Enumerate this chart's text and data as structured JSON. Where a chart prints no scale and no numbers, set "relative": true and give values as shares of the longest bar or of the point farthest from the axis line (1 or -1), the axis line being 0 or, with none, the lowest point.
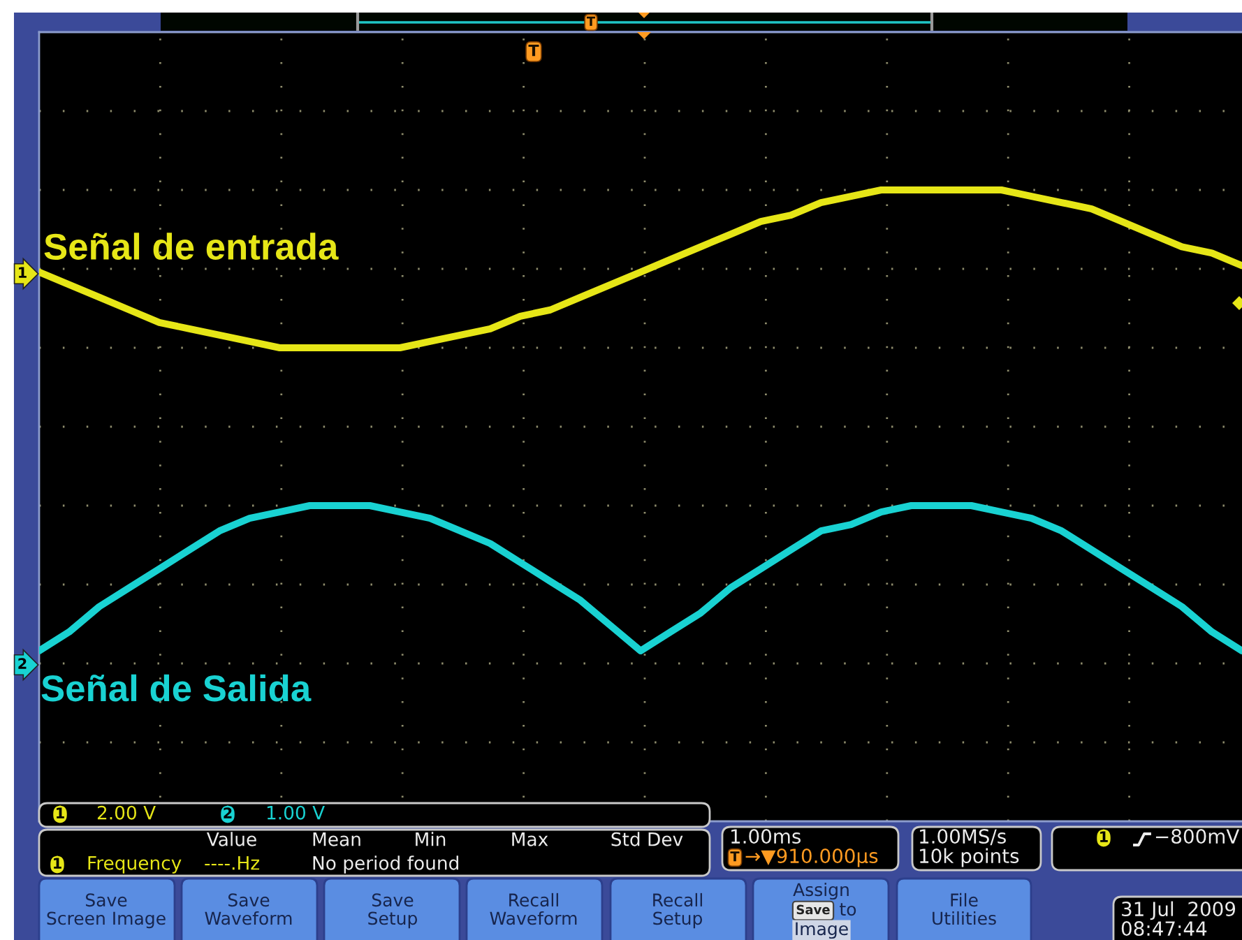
{
  "chart_data": {
    "type": "line",
    "relative": true,
    "grid": true,
    "categories": [
      null,
      null,
      null,
      null,
      null,
      null,
      null,
      null,
      null,
      null,
      null,
      null,
      null,
      null,
      null,
      null,
      null,
      null,
      null,
      null,
      null,
      null,
      null,
      null,
      null,
      null,
      null,
      null,
      null,
      null,
      null,
      null,
      null,
      null,
      null,
      null,
      null,
      null,
      null,
      null,
      null
    ],
    "series": [
      {
        "name": "Señal de entrada",
        "color": "#e6e617",
        "values": [
          0.87,
          0.85,
          0.83,
          0.81,
          0.79,
          0.78,
          0.77,
          0.76,
          0.75,
          0.75,
          0.75,
          0.75,
          0.75,
          0.76,
          0.77,
          0.78,
          0.8,
          0.81,
          0.83,
          0.85,
          0.87,
          0.89,
          0.91,
          0.93,
          0.95,
          0.96,
          0.98,
          0.99,
          1.0,
          1.0,
          1.0,
          1.0,
          1.0,
          0.99,
          0.98,
          0.97,
          0.95,
          0.93,
          0.91,
          0.9,
          0.88
        ]
      },
      {
        "name": "Señal de Salida",
        "color": "#19d2d2",
        "values": [
          0.27,
          0.3,
          0.34,
          0.37,
          0.4,
          0.43,
          0.46,
          0.48,
          0.49,
          0.5,
          0.5,
          0.5,
          0.49,
          0.48,
          0.46,
          0.44,
          0.41,
          0.38,
          0.35,
          0.31,
          0.27,
          0.3,
          0.33,
          0.37,
          0.4,
          0.43,
          0.46,
          0.47,
          0.49,
          0.5,
          0.5,
          0.5,
          0.49,
          0.48,
          0.46,
          0.43,
          0.4,
          0.37,
          0.34,
          0.3,
          0.27
        ]
      }
    ],
    "annotations": [
      "1",
      "2",
      "T",
      "T",
      "1",
      "2.00 V",
      "2",
      "1.00 V",
      "Value",
      "Mean",
      "Min",
      "Max",
      "Std Dev",
      "1",
      "Frequency",
      "----.Hz",
      "No period found",
      "1.00ms",
      "T",
      "→▼910.000µs",
      "1.00MS/s",
      "10k points",
      "1",
      "−800mV",
      "Save\nScreen Image",
      "Save\nWaveform",
      "Save\nSetup",
      "Recall\nWaveform",
      "Recall\nSetup",
      "Assign",
      "Save",
      "to",
      "Image",
      "File\nUtilities",
      "31 Jul  2009",
      "08:47:44"
    ]
  }
}
